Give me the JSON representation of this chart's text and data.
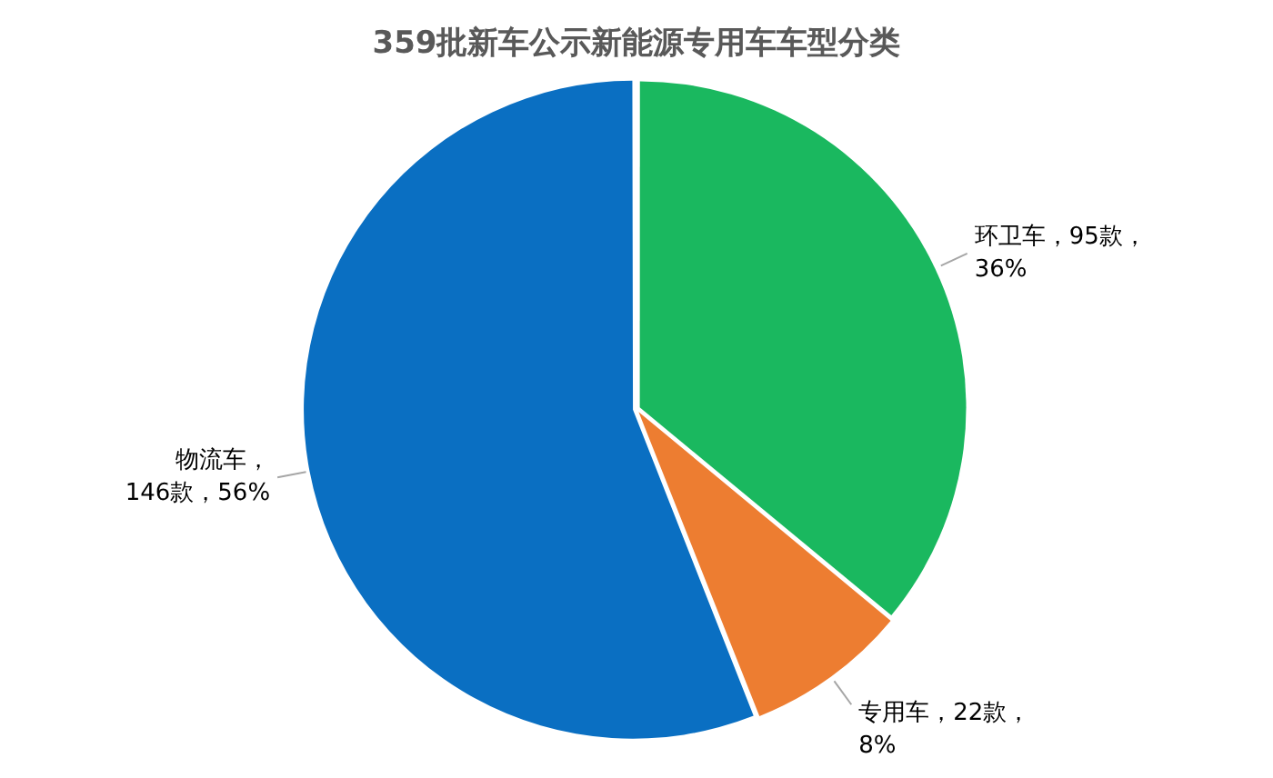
{
  "chart_data": {
    "type": "pie",
    "title": "359批新车公示新能源专用车车型分类",
    "categories": [
      "环卫车",
      "专用车",
      "物流车"
    ],
    "values": [
      36,
      8,
      56
    ],
    "colors": [
      "#1ab85f",
      "#ed7d31",
      "#0a6fc2"
    ],
    "value_labels": [
      "，95款，36%",
      "，22款，8%",
      "，146款，56%"
    ],
    "legend": false
  }
}
